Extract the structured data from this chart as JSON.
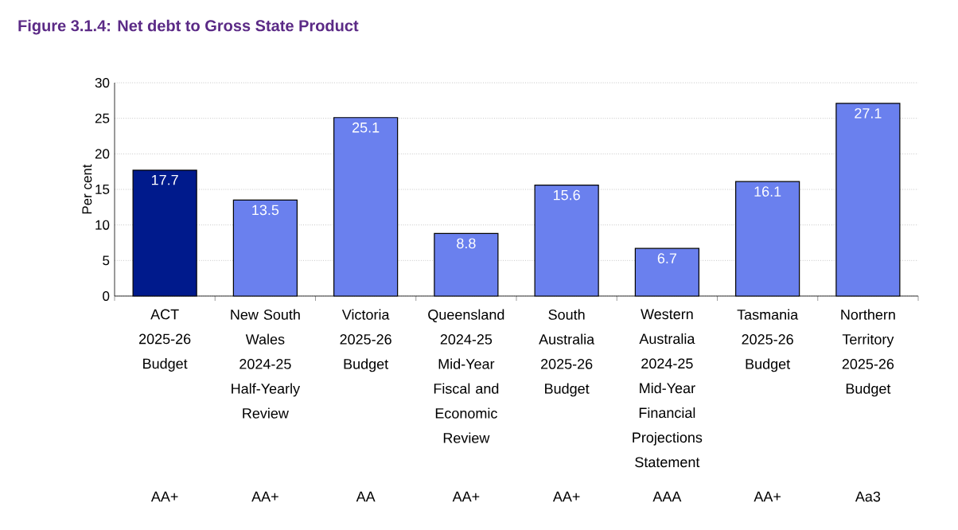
{
  "chart_data": {
    "type": "bar",
    "title": "Figure 3.1.4: Net debt to Gross State Product",
    "ylabel": "Per cent",
    "categories": [
      "ACT 2025-26 Budget",
      "New South Wales 2024-25 Half-Yearly Review",
      "Victoria 2025-26 Budget",
      "Queensland 2024-25 Mid-Year Fiscal and Economic Review",
      "South Australia 2025-26 Budget",
      "Western Australia 2024-25 Mid-Year Financial Projections Statement",
      "Tasmania 2025-26 Budget",
      "Northern Territory 2025-26 Budget"
    ],
    "values": [
      17.7,
      13.5,
      25.1,
      8.8,
      15.6,
      6.7,
      16.1,
      27.1
    ],
    "colors": [
      "#001a8c",
      "#6a80ee",
      "#6a80ee",
      "#6a80ee",
      "#6a80ee",
      "#6a80ee",
      "#6a80ee",
      "#6a80ee"
    ],
    "ylim": [
      0,
      30
    ],
    "yticks": [
      0,
      5,
      10,
      15,
      20,
      25,
      30
    ],
    "grid": "y",
    "data_labels": true,
    "annotations": [
      "AA+",
      "AA+",
      "AA",
      "AA+",
      "AA+",
      "AAA",
      "AA+",
      "Aa3"
    ]
  }
}
